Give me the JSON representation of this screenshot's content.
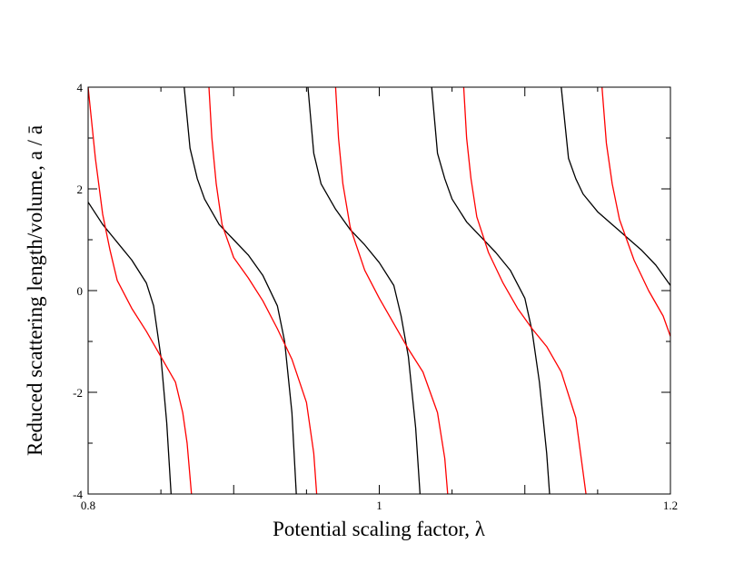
{
  "chart_data": {
    "type": "line",
    "title": "",
    "xlabel": "Potential scaling factor, λ",
    "ylabel": "Reduced scattering length/volume, a / ā",
    "xlim": [
      0.8,
      1.2
    ],
    "ylim": [
      -4,
      4
    ],
    "x_ticks": [
      0.8,
      0.9,
      1.0,
      1.1,
      1.2
    ],
    "x_tick_labels": [
      "0.8",
      "",
      "1",
      "",
      "1.2"
    ],
    "y_ticks": [
      -4,
      -2,
      0,
      2,
      4
    ],
    "y_tick_labels": [
      "-4",
      "-2",
      "0",
      "2",
      "4"
    ],
    "grid": false,
    "legend": "none",
    "series": [
      {
        "color": "#000000",
        "points": [
          [
            0.8,
            1.74
          ],
          [
            0.81,
            1.3
          ],
          [
            0.82,
            0.95
          ],
          [
            0.83,
            0.6
          ],
          [
            0.84,
            0.15
          ],
          [
            0.845,
            -0.3
          ],
          [
            0.85,
            -1.3
          ],
          [
            0.854,
            -2.6
          ],
          [
            0.857,
            -4.0
          ],
          null,
          [
            0.866,
            4.0
          ],
          [
            0.87,
            2.8
          ],
          [
            0.875,
            2.2
          ],
          [
            0.88,
            1.8
          ],
          [
            0.89,
            1.3
          ],
          [
            0.9,
            1.0
          ],
          [
            0.91,
            0.7
          ],
          [
            0.92,
            0.3
          ],
          [
            0.93,
            -0.3
          ],
          [
            0.935,
            -1.0
          ],
          [
            0.94,
            -2.4
          ],
          [
            0.943,
            -4.0
          ],
          null,
          [
            0.951,
            4.0
          ],
          [
            0.955,
            2.7
          ],
          [
            0.96,
            2.1
          ],
          [
            0.97,
            1.6
          ],
          [
            0.98,
            1.2
          ],
          [
            0.99,
            0.9
          ],
          [
            1.0,
            0.55
          ],
          [
            1.01,
            0.1
          ],
          [
            1.015,
            -0.5
          ],
          [
            1.02,
            -1.3
          ],
          [
            1.025,
            -2.7
          ],
          [
            1.028,
            -4.0
          ],
          null,
          [
            1.036,
            4.0
          ],
          [
            1.04,
            2.7
          ],
          [
            1.045,
            2.2
          ],
          [
            1.05,
            1.8
          ],
          [
            1.06,
            1.35
          ],
          [
            1.07,
            1.05
          ],
          [
            1.08,
            0.75
          ],
          [
            1.09,
            0.4
          ],
          [
            1.1,
            -0.15
          ],
          [
            1.105,
            -0.8
          ],
          [
            1.11,
            -1.8
          ],
          [
            1.115,
            -3.2
          ],
          [
            1.117,
            -4.0
          ],
          null,
          [
            1.125,
            4.0
          ],
          [
            1.13,
            2.6
          ],
          [
            1.135,
            2.2
          ],
          [
            1.14,
            1.9
          ],
          [
            1.15,
            1.55
          ],
          [
            1.16,
            1.3
          ],
          [
            1.17,
            1.05
          ],
          [
            1.18,
            0.8
          ],
          [
            1.19,
            0.5
          ],
          [
            1.2,
            0.1
          ]
        ]
      },
      {
        "color": "#ff0000",
        "points": [
          [
            0.8,
            4.0
          ],
          [
            0.805,
            2.6
          ],
          [
            0.81,
            1.5
          ],
          [
            0.815,
            0.8
          ],
          [
            0.82,
            0.2
          ],
          [
            0.83,
            -0.35
          ],
          [
            0.84,
            -0.8
          ],
          [
            0.85,
            -1.3
          ],
          [
            0.86,
            -1.8
          ],
          [
            0.865,
            -2.4
          ],
          [
            0.868,
            -3.0
          ],
          [
            0.871,
            -4.0
          ],
          null,
          [
            0.883,
            4.0
          ],
          [
            0.885,
            3.0
          ],
          [
            0.888,
            2.1
          ],
          [
            0.892,
            1.3
          ],
          [
            0.9,
            0.65
          ],
          [
            0.91,
            0.25
          ],
          [
            0.92,
            -0.2
          ],
          [
            0.93,
            -0.75
          ],
          [
            0.94,
            -1.35
          ],
          [
            0.95,
            -2.2
          ],
          [
            0.955,
            -3.2
          ],
          [
            0.957,
            -4.0
          ],
          null,
          [
            0.97,
            4.0
          ],
          [
            0.972,
            3.0
          ],
          [
            0.975,
            2.1
          ],
          [
            0.98,
            1.25
          ],
          [
            0.99,
            0.4
          ],
          [
            1.0,
            -0.15
          ],
          [
            1.01,
            -0.65
          ],
          [
            1.02,
            -1.15
          ],
          [
            1.03,
            -1.6
          ],
          [
            1.04,
            -2.4
          ],
          [
            1.045,
            -3.3
          ],
          [
            1.047,
            -4.0
          ],
          null,
          [
            1.058,
            4.0
          ],
          [
            1.06,
            3.0
          ],
          [
            1.063,
            2.2
          ],
          [
            1.067,
            1.45
          ],
          [
            1.075,
            0.75
          ],
          [
            1.085,
            0.15
          ],
          [
            1.095,
            -0.35
          ],
          [
            1.105,
            -0.75
          ],
          [
            1.115,
            -1.1
          ],
          [
            1.125,
            -1.6
          ],
          [
            1.135,
            -2.5
          ],
          [
            1.142,
            -4.0
          ],
          null,
          [
            1.153,
            4.0
          ],
          [
            1.156,
            2.9
          ],
          [
            1.16,
            2.1
          ],
          [
            1.165,
            1.4
          ],
          [
            1.175,
            0.6
          ],
          [
            1.185,
            0.0
          ],
          [
            1.195,
            -0.5
          ],
          [
            1.2,
            -0.9
          ]
        ]
      }
    ]
  }
}
